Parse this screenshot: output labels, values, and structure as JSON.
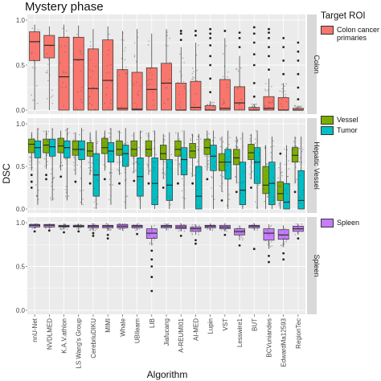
{
  "title": "Mystery phase",
  "xlabel": "Algorithm",
  "ylabel": "DSC",
  "legend_title": "Target ROI",
  "colors": {
    "colon": "#F8766D",
    "vessel": "#7CAE00",
    "tumor": "#00BFC4",
    "spleen": "#C77CFF",
    "panel_bg": "#EBEBEB",
    "grid": "#ffffff",
    "strip_bg": "#D9D9D9",
    "jitter": "#555555"
  },
  "chart_data": {
    "type": "box",
    "categories": [
      "nnU-Net",
      "NVDLMED",
      "K.A.V.athlon",
      "LS Wang's Group",
      "CerebriuDIKU",
      "MIMI",
      "Whale",
      "UBIlearn",
      "LIB",
      "Jiafucang",
      "A-REUMI01",
      "AI-MED",
      "Lupin",
      "VST",
      "Lesswire1",
      "BUT",
      "BCVuniandes",
      "EdwardMa12593",
      "RegionTec"
    ],
    "ylim": [
      0,
      1
    ],
    "yticks": [
      "0.0",
      "0.5",
      "1.0"
    ],
    "grid": true,
    "facets": [
      {
        "strip": "Colon",
        "series": [
          {
            "name": "Colon cancer primaries",
            "color_key": "colon",
            "boxes": [
              {
                "q1": 0.55,
                "med": 0.76,
                "q3": 0.87,
                "lo": 0.0,
                "hi": 0.95,
                "out": []
              },
              {
                "q1": 0.58,
                "med": 0.72,
                "q3": 0.83,
                "lo": 0.0,
                "hi": 0.93,
                "out": []
              },
              {
                "q1": 0.0,
                "med": 0.37,
                "q3": 0.81,
                "lo": 0.0,
                "hi": 0.95,
                "out": []
              },
              {
                "q1": 0.0,
                "med": 0.56,
                "q3": 0.81,
                "lo": 0.0,
                "hi": 0.94,
                "out": []
              },
              {
                "q1": 0.0,
                "med": 0.24,
                "q3": 0.68,
                "lo": 0.0,
                "hi": 0.9,
                "out": []
              },
              {
                "q1": 0.0,
                "med": 0.33,
                "q3": 0.78,
                "lo": 0.0,
                "hi": 0.93,
                "out": []
              },
              {
                "q1": 0.0,
                "med": 0.02,
                "q3": 0.45,
                "lo": 0.0,
                "hi": 0.88,
                "out": []
              },
              {
                "q1": 0.0,
                "med": 0.01,
                "q3": 0.42,
                "lo": 0.0,
                "hi": 0.9,
                "out": []
              },
              {
                "q1": 0.0,
                "med": 0.23,
                "q3": 0.47,
                "lo": 0.0,
                "hi": 0.85,
                "out": []
              },
              {
                "q1": 0.0,
                "med": 0.3,
                "q3": 0.52,
                "lo": 0.0,
                "hi": 0.9,
                "out": []
              },
              {
                "q1": 0.0,
                "med": 0.0,
                "q3": 0.3,
                "lo": 0.0,
                "hi": 0.7,
                "out": [
                  0.78,
                  0.85,
                  0.88
                ]
              },
              {
                "q1": 0.0,
                "med": 0.03,
                "q3": 0.32,
                "lo": 0.0,
                "hi": 0.75,
                "out": [
                  0.83,
                  0.88
                ]
              },
              {
                "q1": 0.0,
                "med": 0.0,
                "q3": 0.05,
                "lo": 0.0,
                "hi": 0.1,
                "out": [
                  0.2,
                  0.35,
                  0.5,
                  0.6,
                  0.72,
                  0.8,
                  0.85,
                  0.9
                ]
              },
              {
                "q1": 0.0,
                "med": 0.02,
                "q3": 0.34,
                "lo": 0.0,
                "hi": 0.8,
                "out": [
                  0.88
                ]
              },
              {
                "q1": 0.0,
                "med": 0.08,
                "q3": 0.26,
                "lo": 0.0,
                "hi": 0.6,
                "out": [
                  0.7,
                  0.8,
                  0.86
                ]
              },
              {
                "q1": 0.0,
                "med": 0.0,
                "q3": 0.03,
                "lo": 0.0,
                "hi": 0.07,
                "out": [
                  0.15,
                  0.3,
                  0.5,
                  0.62,
                  0.75,
                  0.85,
                  0.92
                ]
              },
              {
                "q1": 0.0,
                "med": 0.02,
                "q3": 0.15,
                "lo": 0.0,
                "hi": 0.35,
                "out": [
                  0.45,
                  0.6,
                  0.7,
                  0.8,
                  0.86,
                  0.9
                ]
              },
              {
                "q1": 0.0,
                "med": 0.0,
                "q3": 0.14,
                "lo": 0.0,
                "hi": 0.3,
                "out": [
                  0.4,
                  0.55,
                  0.7,
                  0.8
                ]
              },
              {
                "q1": 0.0,
                "med": 0.0,
                "q3": 0.02,
                "lo": 0.0,
                "hi": 0.05,
                "out": [
                  0.12,
                  0.25,
                  0.4,
                  0.55,
                  0.65,
                  0.75
                ]
              }
            ]
          }
        ]
      },
      {
        "strip": "Hepatic Vessel",
        "series": [
          {
            "name": "Vessel",
            "color_key": "vessel",
            "boxes": [
              {
                "q1": 0.66,
                "med": 0.76,
                "q3": 0.82,
                "lo": 0.45,
                "hi": 0.9,
                "out": [
                  0.4,
                  0.32,
                  0.25
                ]
              },
              {
                "q1": 0.66,
                "med": 0.75,
                "q3": 0.82,
                "lo": 0.47,
                "hi": 0.92,
                "out": [
                  0.4,
                  0.35
                ]
              },
              {
                "q1": 0.66,
                "med": 0.74,
                "q3": 0.83,
                "lo": 0.45,
                "hi": 0.92,
                "out": [
                  0.38
                ]
              },
              {
                "q1": 0.63,
                "med": 0.7,
                "q3": 0.8,
                "lo": 0.4,
                "hi": 0.9,
                "out": [
                  0.32
                ]
              },
              {
                "q1": 0.62,
                "med": 0.68,
                "q3": 0.78,
                "lo": 0.4,
                "hi": 0.9,
                "out": [
                  0.3
                ]
              },
              {
                "q1": 0.65,
                "med": 0.72,
                "q3": 0.83,
                "lo": 0.45,
                "hi": 0.92,
                "out": [
                  0.35
                ]
              },
              {
                "q1": 0.63,
                "med": 0.7,
                "q3": 0.8,
                "lo": 0.4,
                "hi": 0.92,
                "out": [
                  0.3
                ]
              },
              {
                "q1": 0.62,
                "med": 0.7,
                "q3": 0.8,
                "lo": 0.42,
                "hi": 0.9,
                "out": [
                  0.33
                ]
              },
              {
                "q1": 0.62,
                "med": 0.7,
                "q3": 0.8,
                "lo": 0.4,
                "hi": 0.9,
                "out": [
                  0.3
                ]
              },
              {
                "q1": 0.58,
                "med": 0.65,
                "q3": 0.75,
                "lo": 0.35,
                "hi": 0.88,
                "out": [
                  0.25
                ]
              },
              {
                "q1": 0.62,
                "med": 0.7,
                "q3": 0.8,
                "lo": 0.4,
                "hi": 0.9,
                "out": [
                  0.3
                ]
              },
              {
                "q1": 0.6,
                "med": 0.68,
                "q3": 0.77,
                "lo": 0.38,
                "hi": 0.88,
                "out": [
                  0.3
                ]
              },
              {
                "q1": 0.64,
                "med": 0.72,
                "q3": 0.82,
                "lo": 0.45,
                "hi": 0.92,
                "out": [
                  0.35
                ]
              },
              {
                "q1": 0.45,
                "med": 0.55,
                "q3": 0.65,
                "lo": 0.2,
                "hi": 0.85,
                "out": [
                  0.1
                ]
              },
              {
                "q1": 0.52,
                "med": 0.6,
                "q3": 0.7,
                "lo": 0.3,
                "hi": 0.85,
                "out": [
                  0.2
                ]
              },
              {
                "q1": 0.58,
                "med": 0.66,
                "q3": 0.76,
                "lo": 0.35,
                "hi": 0.88,
                "out": [
                  0.25
                ]
              },
              {
                "q1": 0.18,
                "med": 0.28,
                "q3": 0.5,
                "lo": 0.0,
                "hi": 0.75,
                "out": []
              },
              {
                "q1": 0.1,
                "med": 0.18,
                "q3": 0.32,
                "lo": 0.0,
                "hi": 0.55,
                "out": [
                  0.65
                ]
              },
              {
                "q1": 0.55,
                "med": 0.63,
                "q3": 0.72,
                "lo": 0.3,
                "hi": 0.85,
                "out": [
                  0.2
                ]
              }
            ]
          },
          {
            "name": "Tumor",
            "color_key": "tumor",
            "boxes": [
              {
                "q1": 0.6,
                "med": 0.72,
                "q3": 0.8,
                "lo": 0.05,
                "hi": 0.95,
                "out": []
              },
              {
                "q1": 0.62,
                "med": 0.73,
                "q3": 0.82,
                "lo": 0.1,
                "hi": 0.95,
                "out": []
              },
              {
                "q1": 0.6,
                "med": 0.72,
                "q3": 0.8,
                "lo": 0.1,
                "hi": 0.95,
                "out": []
              },
              {
                "q1": 0.58,
                "med": 0.7,
                "q3": 0.8,
                "lo": 0.05,
                "hi": 0.95,
                "out": []
              },
              {
                "q1": 0.15,
                "med": 0.4,
                "q3": 0.65,
                "lo": 0.0,
                "hi": 0.92,
                "out": []
              },
              {
                "q1": 0.55,
                "med": 0.68,
                "q3": 0.78,
                "lo": 0.05,
                "hi": 0.95,
                "out": []
              },
              {
                "q1": 0.5,
                "med": 0.65,
                "q3": 0.75,
                "lo": 0.0,
                "hi": 0.95,
                "out": []
              },
              {
                "q1": 0.15,
                "med": 0.38,
                "q3": 0.6,
                "lo": 0.0,
                "hi": 0.92,
                "out": []
              },
              {
                "q1": 0.05,
                "med": 0.3,
                "q3": 0.6,
                "lo": 0.0,
                "hi": 0.92,
                "out": []
              },
              {
                "q1": 0.1,
                "med": 0.28,
                "q3": 0.58,
                "lo": 0.0,
                "hi": 0.9,
                "out": []
              },
              {
                "q1": 0.4,
                "med": 0.58,
                "q3": 0.72,
                "lo": 0.0,
                "hi": 0.92,
                "out": []
              },
              {
                "q1": 0.0,
                "med": 0.15,
                "q3": 0.5,
                "lo": 0.0,
                "hi": 0.88,
                "out": []
              },
              {
                "q1": 0.45,
                "med": 0.62,
                "q3": 0.75,
                "lo": 0.0,
                "hi": 0.92,
                "out": []
              },
              {
                "q1": 0.35,
                "med": 0.55,
                "q3": 0.7,
                "lo": 0.0,
                "hi": 0.92,
                "out": []
              },
              {
                "q1": 0.05,
                "med": 0.22,
                "q3": 0.55,
                "lo": 0.0,
                "hi": 0.9,
                "out": []
              },
              {
                "q1": 0.3,
                "med": 0.55,
                "q3": 0.72,
                "lo": 0.0,
                "hi": 0.92,
                "out": []
              },
              {
                "q1": 0.05,
                "med": 0.3,
                "q3": 0.55,
                "lo": 0.0,
                "hi": 0.85,
                "out": []
              },
              {
                "q1": 0.0,
                "med": 0.08,
                "q3": 0.3,
                "lo": 0.0,
                "hi": 0.75,
                "out": []
              },
              {
                "q1": 0.0,
                "med": 0.1,
                "q3": 0.45,
                "lo": 0.0,
                "hi": 0.85,
                "out": []
              }
            ]
          }
        ]
      },
      {
        "strip": "Spleen",
        "series": [
          {
            "name": "Spleen",
            "color_key": "spleen",
            "boxes": [
              {
                "q1": 0.95,
                "med": 0.97,
                "q3": 0.98,
                "lo": 0.93,
                "hi": 0.99,
                "out": [
                  0.9
                ]
              },
              {
                "q1": 0.95,
                "med": 0.97,
                "q3": 0.98,
                "lo": 0.93,
                "hi": 0.99,
                "out": [
                  0.91
                ]
              },
              {
                "q1": 0.95,
                "med": 0.96,
                "q3": 0.97,
                "lo": 0.92,
                "hi": 0.99,
                "out": [
                  0.89
                ]
              },
              {
                "q1": 0.95,
                "med": 0.96,
                "q3": 0.97,
                "lo": 0.92,
                "hi": 0.99,
                "out": [
                  0.9
                ]
              },
              {
                "q1": 0.94,
                "med": 0.96,
                "q3": 0.97,
                "lo": 0.91,
                "hi": 0.99,
                "out": [
                  0.88,
                  0.85
                ]
              },
              {
                "q1": 0.94,
                "med": 0.96,
                "q3": 0.97,
                "lo": 0.91,
                "hi": 0.99,
                "out": [
                  0.86,
                  0.82
                ]
              },
              {
                "q1": 0.94,
                "med": 0.96,
                "q3": 0.98,
                "lo": 0.91,
                "hi": 0.99,
                "out": []
              },
              {
                "q1": 0.94,
                "med": 0.96,
                "q3": 0.97,
                "lo": 0.91,
                "hi": 0.99,
                "out": [
                  0.87
                ]
              },
              {
                "q1": 0.82,
                "med": 0.88,
                "q3": 0.93,
                "lo": 0.74,
                "hi": 0.97,
                "out": [
                  0.68,
                  0.58,
                  0.5,
                  0.38,
                  0.22
                ]
              },
              {
                "q1": 0.94,
                "med": 0.96,
                "q3": 0.97,
                "lo": 0.91,
                "hi": 0.99,
                "out": []
              },
              {
                "q1": 0.93,
                "med": 0.95,
                "q3": 0.97,
                "lo": 0.9,
                "hi": 0.99,
                "out": [
                  0.85
                ]
              },
              {
                "q1": 0.9,
                "med": 0.93,
                "q3": 0.95,
                "lo": 0.86,
                "hi": 0.98,
                "out": [
                  0.8,
                  0.76
                ]
              },
              {
                "q1": 0.94,
                "med": 0.96,
                "q3": 0.97,
                "lo": 0.91,
                "hi": 0.99,
                "out": []
              },
              {
                "q1": 0.93,
                "med": 0.95,
                "q3": 0.97,
                "lo": 0.9,
                "hi": 0.99,
                "out": [
                  0.86
                ]
              },
              {
                "q1": 0.86,
                "med": 0.9,
                "q3": 0.93,
                "lo": 0.8,
                "hi": 0.97,
                "out": [
                  0.74
                ]
              },
              {
                "q1": 0.94,
                "med": 0.96,
                "q3": 0.97,
                "lo": 0.91,
                "hi": 0.99,
                "out": [
                  0.7
                ]
              },
              {
                "q1": 0.8,
                "med": 0.88,
                "q3": 0.93,
                "lo": 0.7,
                "hi": 0.98,
                "out": [
                  0.62,
                  0.55
                ]
              },
              {
                "q1": 0.81,
                "med": 0.86,
                "q3": 0.92,
                "lo": 0.72,
                "hi": 0.97,
                "out": [
                  0.65,
                  0.58
                ]
              },
              {
                "q1": 0.9,
                "med": 0.93,
                "q3": 0.96,
                "lo": 0.86,
                "hi": 0.99,
                "out": [
                  0.82
                ]
              }
            ]
          }
        ]
      }
    ]
  },
  "legend": [
    {
      "label": "Colon cancer primaries",
      "color_key": "colon"
    },
    {
      "label": "Vessel",
      "color_key": "vessel"
    },
    {
      "label": "Tumor",
      "color_key": "tumor"
    },
    {
      "label": "Spleen",
      "color_key": "spleen"
    }
  ]
}
